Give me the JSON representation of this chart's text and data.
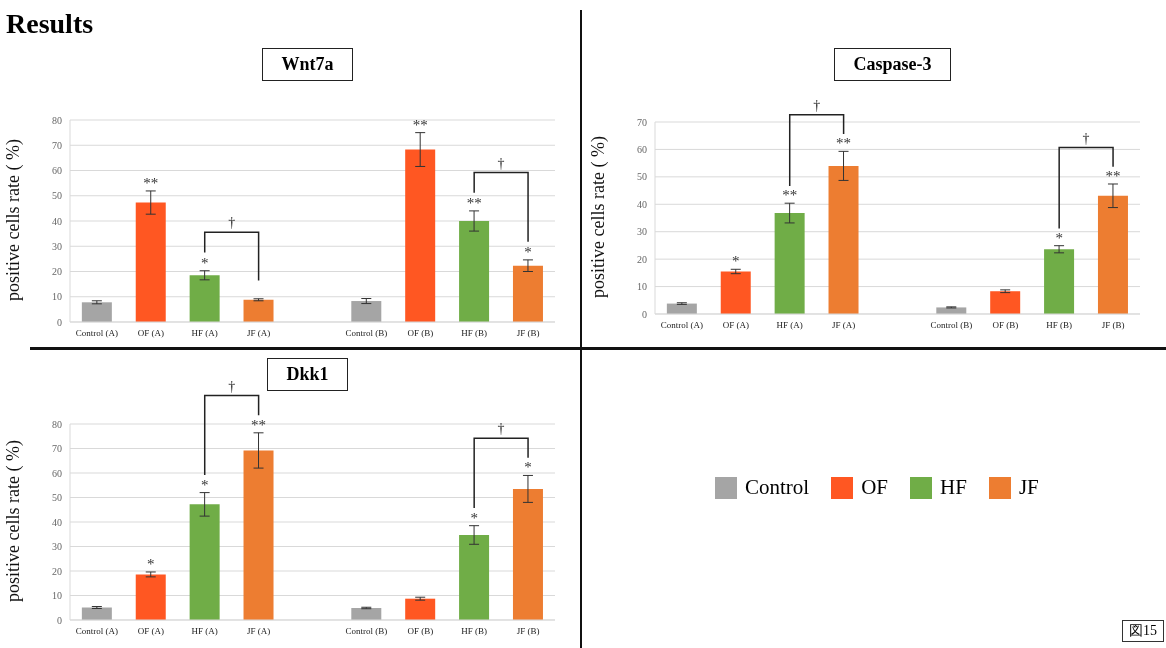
{
  "chart_data": [
    {
      "type": "bar",
      "title": "Wnt7a",
      "ylabel": "positive cells rate ( %)",
      "categories": [
        "Control (A)",
        "OF (A)",
        "HF (A)",
        "JF (A)",
        null,
        "Control (B)",
        "OF (B)",
        "HF (B)",
        "JF (B)"
      ],
      "values": [
        7.8,
        47.3,
        18.5,
        8.8,
        null,
        8.3,
        68.3,
        40,
        22.3
      ],
      "errors": [
        0.6,
        4.6,
        1.8,
        0.4,
        null,
        1,
        6.7,
        4,
        2.3
      ],
      "value_labels": [
        null,
        "**",
        "*",
        null,
        null,
        null,
        "**",
        "**",
        "*"
      ],
      "colors": [
        "#a5a5a5",
        "#ff5722",
        "#70ad47",
        "#ed7d31",
        null,
        "#a5a5a5",
        "#ff5722",
        "#70ad47",
        "#ed7d31"
      ],
      "annotations": [
        "†",
        "†"
      ],
      "ylim": [
        0,
        80
      ],
      "yticks": [
        0,
        10,
        20,
        30,
        40,
        50,
        60,
        70,
        80
      ],
      "grid": "y",
      "legend": false
    },
    {
      "type": "bar",
      "title": "Caspase-3",
      "ylabel": "positive cells rate ( %)",
      "categories": [
        "Control (A)",
        "OF (A)",
        "HF (A)",
        "JF (A)",
        null,
        "Control (B)",
        "OF (B)",
        "HF (B)",
        "JF (B)"
      ],
      "values": [
        3.8,
        15.5,
        36.8,
        54,
        null,
        2.4,
        8.3,
        23.6,
        43.1
      ],
      "errors": [
        0.3,
        0.8,
        3.6,
        5.3,
        null,
        0.2,
        0.5,
        1.3,
        4.3
      ],
      "value_labels": [
        null,
        "*",
        "**",
        "**",
        null,
        null,
        null,
        "*",
        "**"
      ],
      "colors": [
        "#a5a5a5",
        "#ff5722",
        "#70ad47",
        "#ed7d31",
        null,
        "#a5a5a5",
        "#ff5722",
        "#70ad47",
        "#ed7d31"
      ],
      "annotations": [
        "†",
        "†"
      ],
      "ylim": [
        0,
        70
      ],
      "yticks": [
        0,
        10,
        20,
        30,
        40,
        50,
        60,
        70
      ],
      "grid": "y",
      "legend": false
    },
    {
      "type": "bar",
      "title": "Dkk1",
      "ylabel": "positive cells rate ( %)",
      "categories": [
        "Control (A)",
        "OF (A)",
        "HF (A)",
        "JF (A)",
        null,
        "Control (B)",
        "OF (B)",
        "HF (B)",
        "JF (B)"
      ],
      "values": [
        5.1,
        18.6,
        47.2,
        69.2,
        null,
        4.9,
        8.7,
        34.7,
        53.5
      ],
      "errors": [
        0.4,
        1,
        4.8,
        7.2,
        null,
        0.3,
        0.6,
        3.8,
        5.5
      ],
      "value_labels": [
        null,
        "*",
        "*",
        "**",
        null,
        null,
        null,
        "*",
        "*"
      ],
      "colors": [
        "#a5a5a5",
        "#ff5722",
        "#70ad47",
        "#ed7d31",
        null,
        "#a5a5a5",
        "#ff5722",
        "#70ad47",
        "#ed7d31"
      ],
      "annotations": [
        "†",
        "†"
      ],
      "ylim": [
        0,
        80
      ],
      "yticks": [
        0,
        10,
        20,
        30,
        40,
        50,
        60,
        70,
        80
      ],
      "grid": "y",
      "legend": false
    },
    {
      "type": "other",
      "categories": [
        "Control",
        "OF",
        "HF",
        "JF"
      ],
      "colors": [
        "#a5a5a5",
        "#ff5722",
        "#70ad47",
        "#ed7d31"
      ],
      "annotations": [
        "Results",
        "図15"
      ]
    }
  ]
}
